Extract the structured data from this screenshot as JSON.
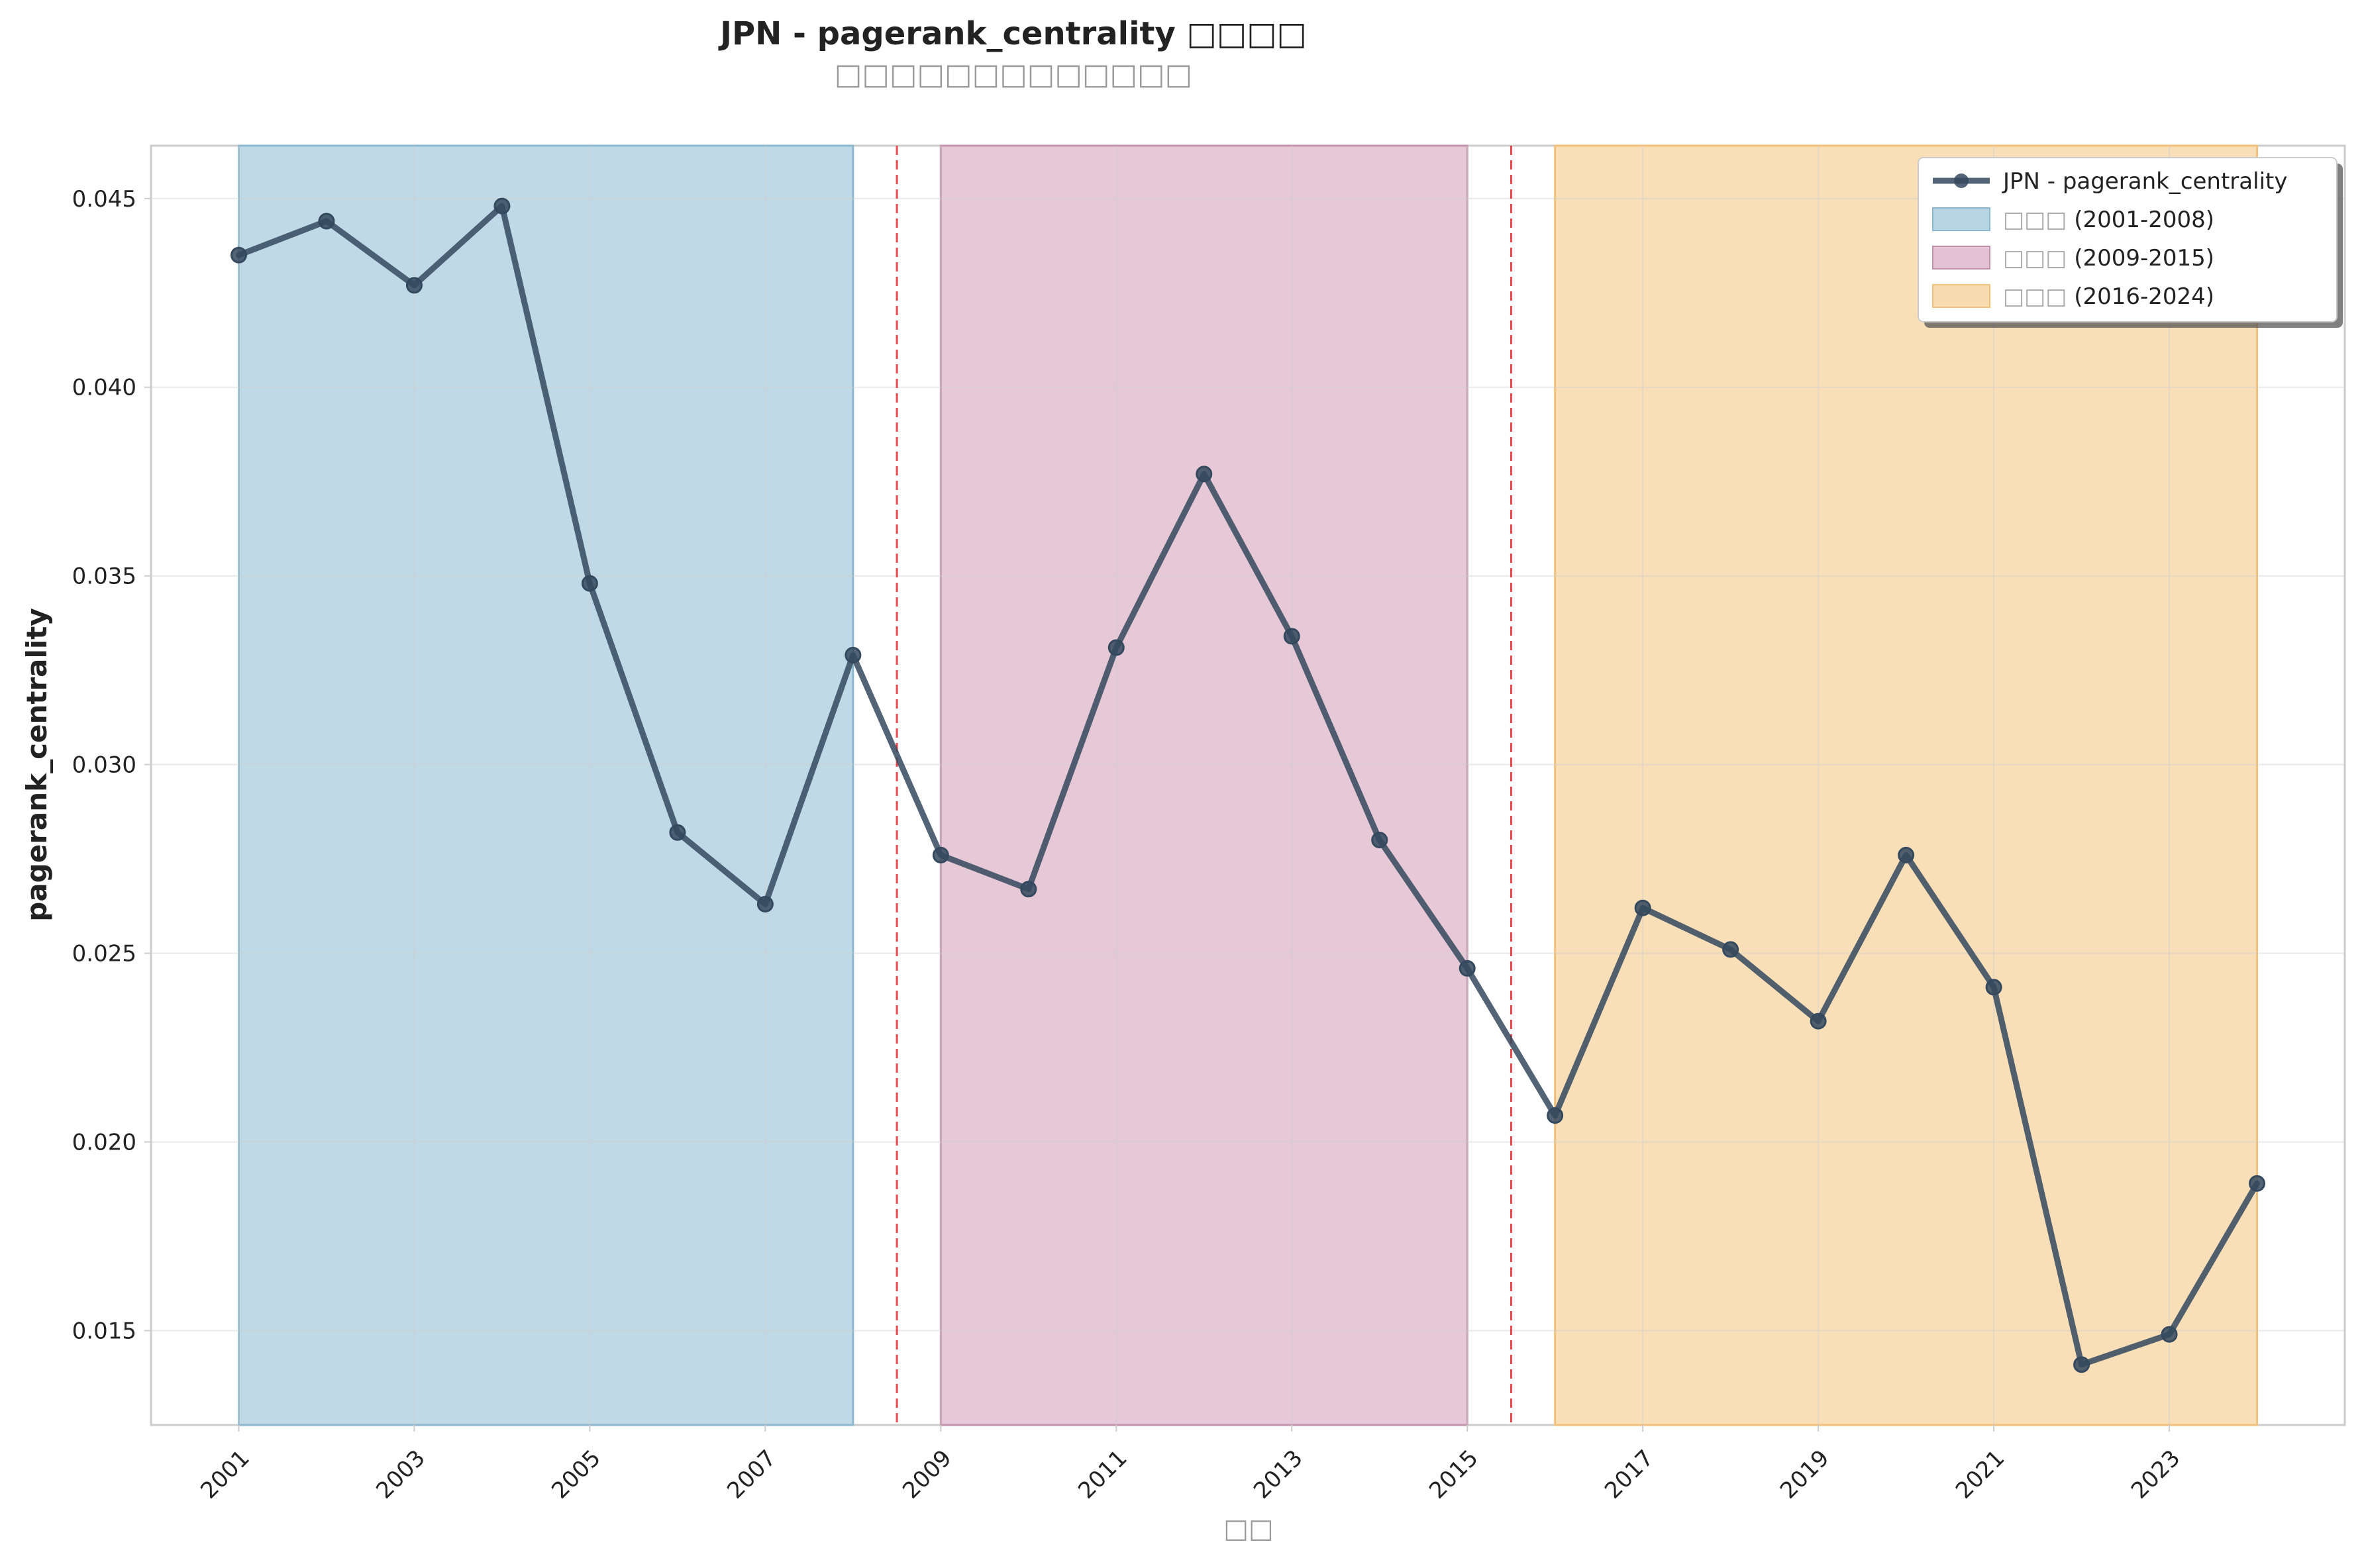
{
  "chart_data": {
    "type": "line",
    "title": "JPN - pagerank_centrality □□□□",
    "subtitle": "□□□□□□□□□□□□□",
    "xlabel": "□□",
    "ylabel": "pagerank_centrality",
    "xlim": [
      2000,
      2025
    ],
    "ylim": [
      0.0125,
      0.0464
    ],
    "grid": true,
    "legend_position": "top-right",
    "x_ticks": [
      2001,
      2003,
      2005,
      2007,
      2009,
      2011,
      2013,
      2015,
      2017,
      2019,
      2021,
      2023
    ],
    "y_ticks": [
      0.015,
      0.02,
      0.025,
      0.03,
      0.035,
      0.04,
      0.045
    ],
    "y_tick_labels": [
      "0.015",
      "0.020",
      "0.025",
      "0.030",
      "0.035",
      "0.040",
      "0.045"
    ],
    "series": [
      {
        "name": "JPN - pagerank_centrality",
        "color": "#34495e",
        "x": [
          2001,
          2002,
          2003,
          2004,
          2005,
          2006,
          2007,
          2008,
          2009,
          2010,
          2011,
          2012,
          2013,
          2014,
          2015,
          2016,
          2017,
          2018,
          2019,
          2020,
          2021,
          2022,
          2023,
          2024
        ],
        "y": [
          0.0435,
          0.0444,
          0.0427,
          0.0448,
          0.0348,
          0.0282,
          0.0263,
          0.0329,
          0.0276,
          0.0267,
          0.0331,
          0.0377,
          0.0334,
          0.028,
          0.0246,
          0.0207,
          0.0262,
          0.0251,
          0.0232,
          0.0276,
          0.0241,
          0.0141,
          0.0149,
          0.0189
        ]
      }
    ],
    "periods": [
      {
        "label": "□□□ (2001-2008)",
        "prefix": "□□□",
        "range": "(2001-2008)",
        "start": 2001,
        "end": 2008,
        "color": "#a7cbdc",
        "edge": "#8bb8d0"
      },
      {
        "label": "□□□ (2009-2015)",
        "prefix": "□□□",
        "range": "(2009-2015)",
        "start": 2009,
        "end": 2015,
        "color": "#dcb3c8",
        "edge": "#c393ad"
      },
      {
        "label": "□□□ (2016-2024)",
        "prefix": "□□□",
        "range": "(2016-2024)",
        "start": 2016,
        "end": 2024,
        "color": "#f6d39c",
        "edge": "#f1c07a"
      }
    ],
    "breakpoints": [
      2008.5,
      2015.5
    ],
    "breakpoint_color": "#e8474b"
  }
}
